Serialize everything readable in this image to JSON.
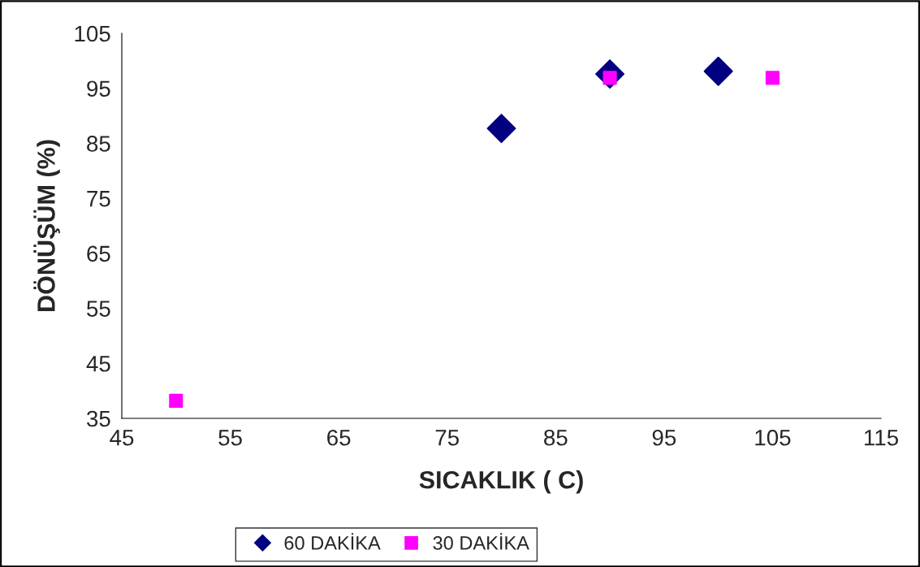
{
  "chart_data": {
    "type": "scatter",
    "xlabel": "SICAKLIK ( C)",
    "ylabel": "DÖNÜŞÜM (%)",
    "series": [
      {
        "name": "60 DAKİKA",
        "color": "#000080",
        "marker": "diamond",
        "x": [
          80,
          90,
          100
        ],
        "values": [
          87.7,
          97.6,
          98.1
        ]
      },
      {
        "name": "30 DAKİKA",
        "color": "#ff00ff",
        "marker": "square",
        "x": [
          50,
          90,
          105
        ],
        "values": [
          38.2,
          96.9,
          96.9
        ]
      }
    ],
    "xlim": [
      45,
      115
    ],
    "xticks": [
      45,
      55,
      65,
      75,
      85,
      95,
      105,
      115
    ],
    "ylim": [
      35,
      105
    ],
    "yticks": [
      35,
      45,
      55,
      65,
      75,
      85,
      95,
      105
    ],
    "grid": false,
    "legend": "bottom"
  }
}
